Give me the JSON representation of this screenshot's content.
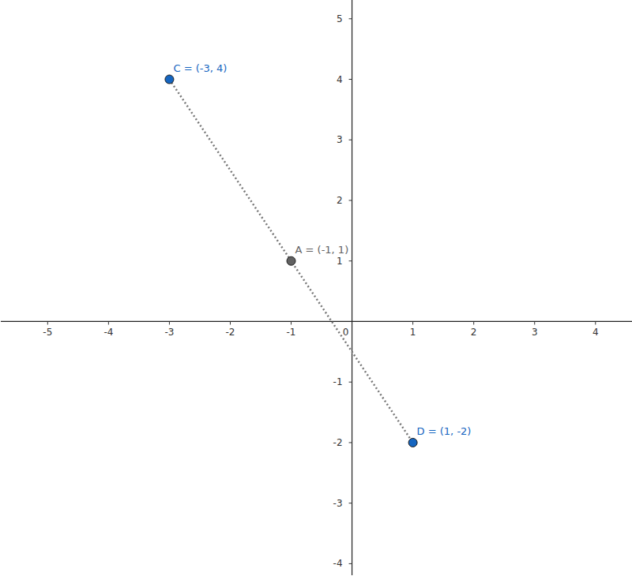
{
  "chart_data": {
    "type": "scatter",
    "x": [
      -3,
      -1,
      1
    ],
    "values": [
      4,
      1,
      -2
    ],
    "value_labels": [
      "C = (-3, 4)",
      "A = (-1, 1)",
      "D = (1, -2)"
    ],
    "colors": [
      "#1565c0",
      "#616161",
      "#1565c0"
    ],
    "marker": "circle",
    "line_style": "dotted",
    "data_labels": true,
    "xlim": [
      -5.77,
      4.6
    ],
    "ylim": [
      -4.19,
      5.31
    ],
    "xticks": [
      -5,
      -4,
      -3,
      -2,
      -1,
      0,
      1,
      2,
      3,
      4
    ],
    "yticks": [
      -4,
      -3,
      -2,
      -1,
      1,
      2,
      3,
      4,
      5
    ]
  }
}
